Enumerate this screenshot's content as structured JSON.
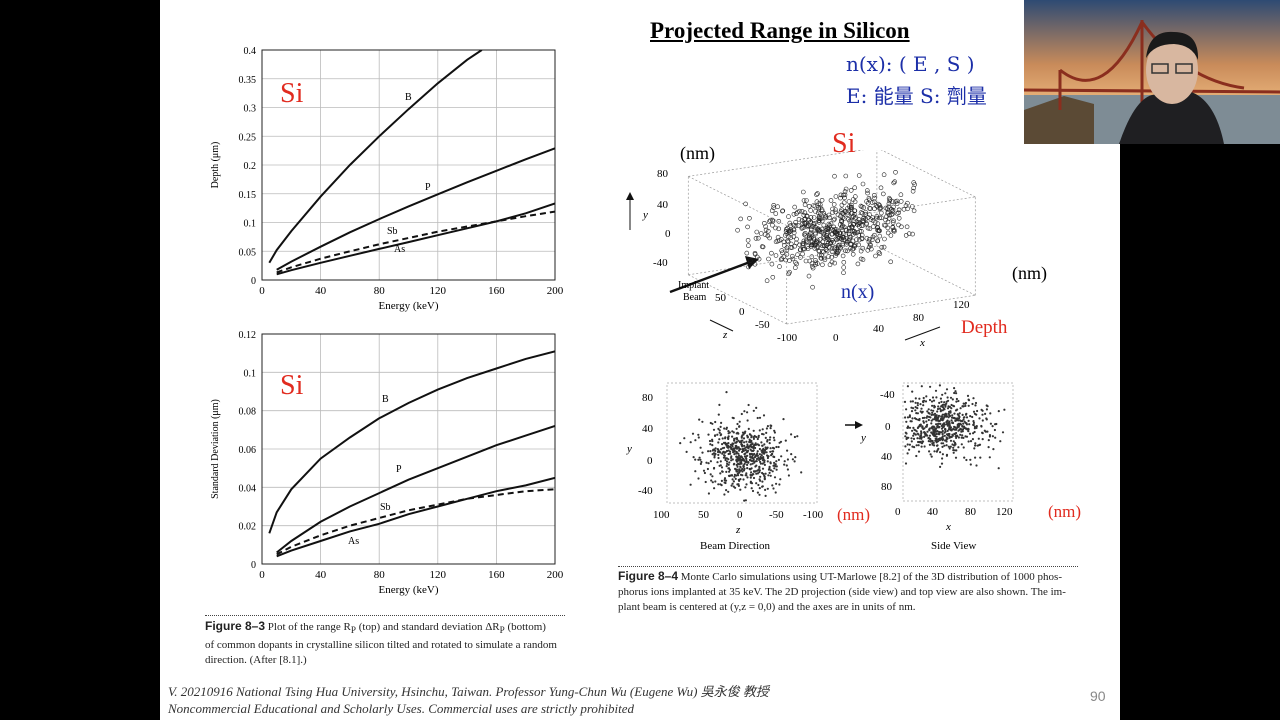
{
  "slide": {
    "title": "Projected Range in Silicon",
    "notes": {
      "line1": "n(x): ( E , S )",
      "line2": "E: 能量  S: 劑量",
      "si_top": "Si",
      "si_bottom": "Si",
      "si_3d": "Si",
      "nm_3d_y": "(nm)",
      "nm_3d_x": "(nm)",
      "nx": "n(x)",
      "depth": "Depth",
      "nm_beam": "(nm)",
      "nm_side": "(nm)"
    },
    "fig83_caption": {
      "label": "Figure 8–3",
      "text1": "Plot of the range R",
      "text2": " (top) and standard deviation ΔR",
      "text3": " (bottom)",
      "line2": "of common dopants in crystalline silicon tilted and rotated to simulate a random",
      "line3": "direction. (After [8.1].)",
      "sub": "P"
    },
    "fig84_caption": {
      "label": "Figure 8–4",
      "line1": "Monte Carlo simulations using UT-Marlowe [8.2] of the 3D distribution of 1000 phos-",
      "line2": "phorus ions implanted at 35 keV. The 2D projection (side view) and top view are also shown. The im-",
      "line3": "plant beam is centered at (y,z = 0,0) and the axes are in units of nm."
    },
    "footer_line1": "V. 20210916 National Tsing Hua University, Hsinchu, Taiwan. Professor Yung-Chun Wu (Eugene Wu) 吳永俊 教授",
    "footer_line2": "Noncommercial Educational and Scholarly Uses. Commercial uses are strictly prohibited",
    "page_number": "90"
  },
  "fig3d": {
    "y_label": "y",
    "z_label": "z",
    "x_label": "x",
    "implant_beam": [
      "Implant",
      "Beam"
    ],
    "y_ticks": [
      "80",
      "40",
      "0",
      "-40"
    ],
    "z_ticks": [
      "50",
      "0",
      "-50",
      "-100"
    ],
    "x_ticks": [
      "0",
      "40",
      "80",
      "120"
    ]
  },
  "fig_beam": {
    "y_label": "y",
    "x_label": "z",
    "title": "Beam Direction",
    "y_ticks": [
      "80",
      "40",
      "0",
      "-40"
    ],
    "x_ticks": [
      "100",
      "50",
      "0",
      "-50",
      "-100"
    ]
  },
  "fig_side": {
    "y_label": "y",
    "x_label": "x",
    "title": "Side View",
    "y_ticks": [
      "-40",
      "0",
      "40",
      "80"
    ],
    "x_ticks": [
      "0",
      "40",
      "80",
      "120"
    ]
  },
  "colors": {
    "note_blue": "#1c2fa8",
    "note_red": "#e12b1f"
  },
  "chart_data": [
    {
      "type": "line",
      "xlabel": "Energy (keV)",
      "ylabel": "Depth (μm)",
      "xlim": [
        0,
        200
      ],
      "ylim": [
        0,
        0.4
      ],
      "x_ticks": [
        0,
        40,
        80,
        120,
        160,
        200
      ],
      "y_ticks": [
        0,
        0.05,
        0.1,
        0.15,
        0.2,
        0.25,
        0.3,
        0.35,
        0.4
      ],
      "x_tick_labels": [
        "0",
        "40",
        "80",
        "120",
        "160",
        "200"
      ],
      "y_tick_labels": [
        "0",
        "0.05",
        "0.1",
        "0.15",
        "0.2",
        "0.25",
        "0.3",
        "0.35",
        "0.4"
      ],
      "grid": true,
      "series": [
        {
          "name": "B",
          "dash": false,
          "x": [
            5,
            10,
            20,
            40,
            60,
            80,
            100,
            120,
            140,
            150
          ],
          "values": [
            0.03,
            0.052,
            0.085,
            0.145,
            0.2,
            0.25,
            0.297,
            0.342,
            0.383,
            0.4
          ]
        },
        {
          "name": "P",
          "dash": false,
          "x": [
            10,
            20,
            40,
            60,
            80,
            100,
            120,
            140,
            160,
            180,
            200
          ],
          "values": [
            0.018,
            0.032,
            0.058,
            0.083,
            0.106,
            0.128,
            0.149,
            0.17,
            0.19,
            0.21,
            0.229
          ]
        },
        {
          "name": "Sb",
          "dash": true,
          "x": [
            10,
            20,
            40,
            60,
            80,
            100,
            120,
            140,
            160,
            180,
            200
          ],
          "values": [
            0.013,
            0.022,
            0.037,
            0.05,
            0.062,
            0.073,
            0.084,
            0.093,
            0.102,
            0.111,
            0.119
          ]
        },
        {
          "name": "As",
          "dash": false,
          "x": [
            10,
            20,
            40,
            60,
            80,
            100,
            120,
            140,
            160,
            180,
            200
          ],
          "values": [
            0.01,
            0.017,
            0.03,
            0.042,
            0.054,
            0.066,
            0.078,
            0.09,
            0.102,
            0.116,
            0.133
          ]
        }
      ],
      "series_labels": [
        "B",
        "P",
        "Sb",
        "As"
      ]
    },
    {
      "type": "line",
      "xlabel": "Energy (keV)",
      "ylabel": "Standard Deviation (μm)",
      "xlim": [
        0,
        200
      ],
      "ylim": [
        0,
        0.12
      ],
      "x_ticks": [
        0,
        40,
        80,
        120,
        160,
        200
      ],
      "y_ticks": [
        0,
        0.02,
        0.04,
        0.06,
        0.08,
        0.1,
        0.12
      ],
      "x_tick_labels": [
        "0",
        "40",
        "80",
        "120",
        "160",
        "200"
      ],
      "y_tick_labels": [
        "0",
        "0.02",
        "0.04",
        "0.06",
        "0.08",
        "0.1",
        "0.12"
      ],
      "grid": true,
      "series": [
        {
          "name": "B",
          "dash": false,
          "x": [
            5,
            10,
            20,
            40,
            60,
            80,
            100,
            120,
            140,
            160,
            180,
            200
          ],
          "values": [
            0.016,
            0.027,
            0.039,
            0.055,
            0.066,
            0.076,
            0.084,
            0.091,
            0.097,
            0.102,
            0.107,
            0.111
          ]
        },
        {
          "name": "P",
          "dash": false,
          "x": [
            10,
            20,
            40,
            60,
            80,
            100,
            120,
            140,
            160,
            180,
            200
          ],
          "values": [
            0.006,
            0.012,
            0.022,
            0.03,
            0.037,
            0.044,
            0.05,
            0.056,
            0.062,
            0.067,
            0.072
          ]
        },
        {
          "name": "Sb",
          "dash": true,
          "x": [
            10,
            20,
            40,
            60,
            80,
            100,
            120,
            140,
            160,
            180,
            200
          ],
          "values": [
            0.005,
            0.009,
            0.015,
            0.02,
            0.024,
            0.028,
            0.031,
            0.034,
            0.036,
            0.038,
            0.039
          ]
        },
        {
          "name": "As",
          "dash": false,
          "x": [
            10,
            20,
            40,
            60,
            80,
            100,
            120,
            140,
            160,
            180,
            200
          ],
          "values": [
            0.004,
            0.007,
            0.012,
            0.017,
            0.021,
            0.026,
            0.03,
            0.034,
            0.038,
            0.041,
            0.045
          ]
        }
      ],
      "series_labels": [
        "B",
        "P",
        "Sb",
        "As"
      ]
    }
  ]
}
